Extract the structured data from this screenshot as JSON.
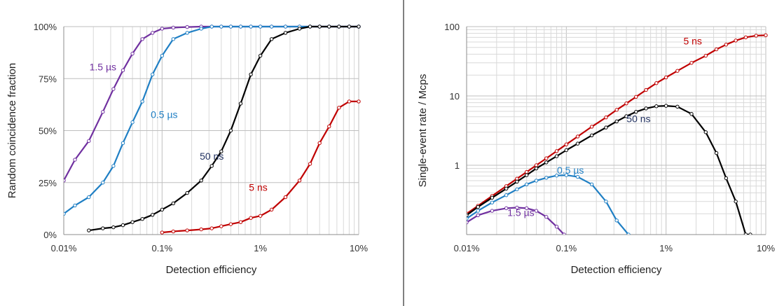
{
  "chart_data": [
    {
      "type": "line",
      "title": "",
      "xlabel": "Detection efficiency",
      "ylabel": "Random coincidence fraction",
      "xscale": "log",
      "xlim": [
        0.0001,
        0.1
      ],
      "ylim": [
        0,
        1
      ],
      "x_ticks": [
        {
          "value": 0.0001,
          "label": "0.01%"
        },
        {
          "value": 0.001,
          "label": "0.1%"
        },
        {
          "value": 0.01,
          "label": "1%"
        },
        {
          "value": 0.1,
          "label": "10%"
        }
      ],
      "y_ticks": [
        {
          "value": 0,
          "label": "0%"
        },
        {
          "value": 0.25,
          "label": "25%"
        },
        {
          "value": 0.5,
          "label": "50%"
        },
        {
          "value": 0.75,
          "label": "75%"
        },
        {
          "value": 1,
          "label": "100%"
        }
      ],
      "grid": true,
      "legend": "inline labels",
      "series": [
        {
          "name": "1.5 µs",
          "color": "#7030a0",
          "x": [
            0.0001,
            0.00013,
            0.00018,
            0.00025,
            0.00032,
            0.0004,
            0.0005,
            0.00063,
            0.0008,
            0.001,
            0.0013,
            0.0018,
            0.0025,
            0.0032,
            0.004,
            0.005,
            0.0063,
            0.008,
            0.01,
            0.013,
            0.018,
            0.025,
            0.032,
            0.04,
            0.05,
            0.063,
            0.08,
            0.1
          ],
          "y": [
            0.26,
            0.36,
            0.45,
            0.59,
            0.7,
            0.79,
            0.87,
            0.94,
            0.97,
            0.99,
            0.995,
            0.998,
            1,
            1,
            1,
            1,
            1,
            1,
            1,
            1,
            1,
            1,
            1,
            1,
            1,
            1,
            1,
            1
          ],
          "label_position": {
            "x": 0.00025,
            "y": 0.79
          }
        },
        {
          "name": "0.5 µs",
          "color": "#1f7fc4",
          "x": [
            0.0001,
            0.00013,
            0.00018,
            0.00025,
            0.00032,
            0.0004,
            0.0005,
            0.00063,
            0.0008,
            0.001,
            0.0013,
            0.0018,
            0.0025,
            0.0032,
            0.004,
            0.005,
            0.0063,
            0.008,
            0.01,
            0.013,
            0.018,
            0.025,
            0.032,
            0.04,
            0.05,
            0.063,
            0.08,
            0.1
          ],
          "y": [
            0.1,
            0.14,
            0.18,
            0.25,
            0.33,
            0.44,
            0.54,
            0.64,
            0.77,
            0.86,
            0.94,
            0.97,
            0.99,
            1,
            1,
            1,
            1,
            1,
            1,
            1,
            1,
            1,
            1,
            1,
            1,
            1,
            1,
            1
          ],
          "label_position": {
            "x": 0.00105,
            "y": 0.56
          }
        },
        {
          "name": "50 ns",
          "color": "#000000",
          "x": [
            0.00018,
            0.00025,
            0.00032,
            0.0004,
            0.0005,
            0.00063,
            0.0008,
            0.001,
            0.0013,
            0.0018,
            0.0025,
            0.0032,
            0.004,
            0.005,
            0.0063,
            0.008,
            0.01,
            0.013,
            0.018,
            0.025,
            0.032,
            0.04,
            0.05,
            0.063,
            0.08,
            0.1
          ],
          "y": [
            0.02,
            0.03,
            0.035,
            0.045,
            0.06,
            0.075,
            0.095,
            0.12,
            0.15,
            0.2,
            0.26,
            0.33,
            0.4,
            0.5,
            0.63,
            0.77,
            0.86,
            0.94,
            0.97,
            0.99,
            1,
            1,
            1,
            1,
            1,
            1
          ],
          "label_position": {
            "x": 0.0032,
            "y": 0.36
          }
        },
        {
          "name": "5 ns",
          "color": "#c00000",
          "x": [
            0.001,
            0.0013,
            0.0018,
            0.0025,
            0.0032,
            0.004,
            0.005,
            0.0063,
            0.008,
            0.01,
            0.013,
            0.018,
            0.025,
            0.032,
            0.04,
            0.05,
            0.063,
            0.08,
            0.1
          ],
          "y": [
            0.01,
            0.015,
            0.02,
            0.025,
            0.03,
            0.04,
            0.05,
            0.06,
            0.08,
            0.09,
            0.12,
            0.18,
            0.26,
            0.34,
            0.44,
            0.52,
            0.61,
            0.64,
            0.64
          ],
          "label_position": {
            "x": 0.0095,
            "y": 0.21
          }
        }
      ]
    },
    {
      "type": "line",
      "title": "",
      "xlabel": "Detection efficiency",
      "ylabel": "Single-event rate / Mcps",
      "xscale": "log",
      "yscale": "log",
      "xlim": [
        0.0001,
        0.1
      ],
      "ylim": [
        0.1,
        100
      ],
      "x_ticks": [
        {
          "value": 0.0001,
          "label": "0.01%"
        },
        {
          "value": 0.001,
          "label": "0.1%"
        },
        {
          "value": 0.01,
          "label": "1%"
        },
        {
          "value": 0.1,
          "label": "10%"
        }
      ],
      "y_ticks": [
        {
          "value": 1,
          "label": "1"
        },
        {
          "value": 10,
          "label": "10"
        },
        {
          "value": 100,
          "label": "100"
        }
      ],
      "grid": true,
      "legend": "inline labels",
      "series": [
        {
          "name": "5 ns",
          "color": "#c00000",
          "x": [
            0.0001,
            0.00013,
            0.00018,
            0.00025,
            0.00032,
            0.0004,
            0.0005,
            0.00063,
            0.0008,
            0.001,
            0.0013,
            0.0018,
            0.0025,
            0.0032,
            0.004,
            0.005,
            0.0063,
            0.008,
            0.01,
            0.013,
            0.018,
            0.025,
            0.032,
            0.04,
            0.05,
            0.063,
            0.08,
            0.1
          ],
          "y": [
            0.2,
            0.26,
            0.36,
            0.5,
            0.64,
            0.8,
            1.0,
            1.26,
            1.6,
            2.0,
            2.6,
            3.6,
            4.9,
            6.3,
            7.8,
            9.7,
            12.2,
            15.3,
            18.5,
            23,
            30,
            38,
            47,
            55,
            63,
            70,
            74,
            75
          ],
          "label_position": {
            "x": 0.0185,
            "y": 55
          }
        },
        {
          "name": "50 ns",
          "color": "#000000",
          "x": [
            0.0001,
            0.00013,
            0.00018,
            0.00025,
            0.00032,
            0.0004,
            0.0005,
            0.00063,
            0.0008,
            0.001,
            0.0013,
            0.0018,
            0.0025,
            0.0032,
            0.004,
            0.005,
            0.0063,
            0.008,
            0.01,
            0.013,
            0.018,
            0.025,
            0.032,
            0.04,
            0.05,
            0.063,
            0.07
          ],
          "y": [
            0.19,
            0.25,
            0.34,
            0.46,
            0.58,
            0.72,
            0.9,
            1.1,
            1.35,
            1.65,
            2.05,
            2.7,
            3.5,
            4.3,
            5.1,
            5.9,
            6.6,
            7.1,
            7.2,
            7.0,
            5.5,
            3.0,
            1.5,
            0.65,
            0.3,
            0.1,
            0.1
          ],
          "label_position": {
            "x": 0.0053,
            "y": 4.2
          }
        },
        {
          "name": "0.5 µs",
          "color": "#1f7fc4",
          "x": [
            0.0001,
            0.00013,
            0.00018,
            0.00025,
            0.00032,
            0.0004,
            0.0005,
            0.00063,
            0.0008,
            0.001,
            0.0013,
            0.0018,
            0.0025,
            0.0032,
            0.0042
          ],
          "y": [
            0.17,
            0.22,
            0.29,
            0.37,
            0.45,
            0.53,
            0.6,
            0.66,
            0.71,
            0.72,
            0.68,
            0.53,
            0.3,
            0.16,
            0.1
          ],
          "label_position": {
            "x": 0.0011,
            "y": 0.76
          }
        },
        {
          "name": "1.5 µs",
          "color": "#7030a0",
          "x": [
            0.0001,
            0.00013,
            0.00018,
            0.00025,
            0.00032,
            0.0004,
            0.0005,
            0.00063,
            0.0008,
            0.00095
          ],
          "y": [
            0.15,
            0.19,
            0.22,
            0.24,
            0.245,
            0.24,
            0.22,
            0.18,
            0.13,
            0.1
          ],
          "label_position": {
            "x": 0.00035,
            "y": 0.185
          }
        }
      ]
    }
  ]
}
